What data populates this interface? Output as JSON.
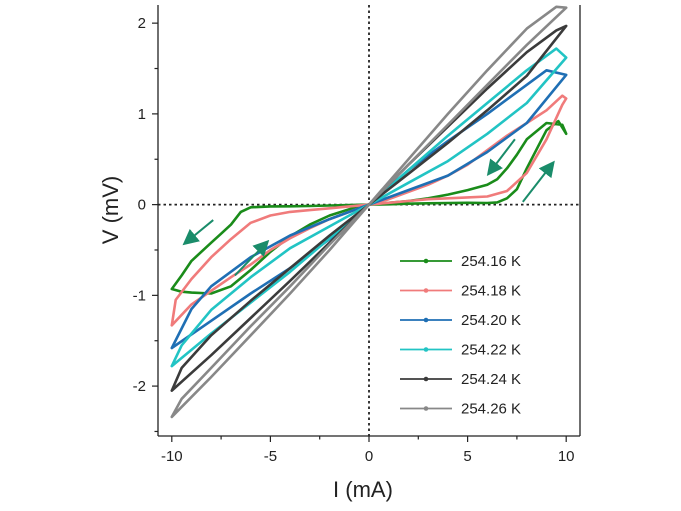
{
  "chart_data": {
    "type": "line",
    "xlabel": "I (mA)",
    "ylabel": "V (mV)",
    "xlim": [
      -10.7,
      10.7
    ],
    "ylim": [
      -2.55,
      2.2
    ],
    "x_ticks": [
      -10,
      -5,
      0,
      5,
      10
    ],
    "y_ticks": [
      -2,
      -1,
      0,
      1,
      2
    ],
    "reference_lines": {
      "x": 0,
      "y": 0,
      "style": "dotted"
    },
    "legend_position": "bottom-right",
    "series": [
      {
        "name": "254.16 K",
        "color": "#1a8c1a",
        "x": [
          -10,
          -9.5,
          -9,
          -8,
          -7,
          -6,
          -5,
          -4,
          -3,
          -2,
          -1,
          0,
          1,
          2,
          3,
          4,
          5,
          6,
          6.5,
          7,
          7.5,
          8,
          9,
          9.6,
          10,
          9.8,
          9,
          8,
          7.5,
          7,
          6.5,
          6,
          5,
          4,
          3,
          2,
          1,
          0,
          -1,
          -2,
          -3,
          -4,
          -5,
          -6,
          -6.5,
          -7,
          -7.5,
          -8,
          -9,
          -9.5,
          -10
        ],
        "y": [
          -0.93,
          -0.96,
          -0.97,
          -0.98,
          -0.9,
          -0.72,
          -0.52,
          -0.35,
          -0.22,
          -0.12,
          -0.05,
          0,
          0.004,
          0.01,
          0.015,
          0.018,
          0.02,
          0.018,
          0.025,
          0.07,
          0.17,
          0.4,
          0.82,
          0.92,
          0.78,
          0.88,
          0.9,
          0.72,
          0.55,
          0.4,
          0.28,
          0.22,
          0.16,
          0.11,
          0.07,
          0.04,
          0.02,
          0,
          -0.004,
          -0.01,
          -0.015,
          -0.018,
          -0.02,
          -0.03,
          -0.08,
          -0.22,
          -0.32,
          -0.42,
          -0.62,
          -0.78,
          -0.93
        ]
      },
      {
        "name": "254.18 K",
        "color": "#f07b7b",
        "x": [
          -10,
          -9,
          -8,
          -7,
          -6,
          -5,
          -4,
          -3,
          -2,
          -1,
          0,
          1,
          2,
          3,
          4,
          5,
          6,
          7,
          8,
          9,
          9.8,
          10,
          9.8,
          9,
          8,
          7,
          6,
          5,
          4,
          3,
          2,
          1,
          0,
          -1,
          -2,
          -3,
          -4,
          -5,
          -6,
          -7,
          -8,
          -9,
          -9.8,
          -10
        ],
        "y": [
          -1.33,
          -1.1,
          -0.95,
          -0.8,
          -0.66,
          -0.5,
          -0.37,
          -0.26,
          -0.16,
          -0.08,
          0,
          0.02,
          0.04,
          0.06,
          0.07,
          0.08,
          0.09,
          0.15,
          0.35,
          0.72,
          1.1,
          1.17,
          1.2,
          1.04,
          0.9,
          0.76,
          0.6,
          0.44,
          0.32,
          0.22,
          0.14,
          0.06,
          0,
          -0.02,
          -0.04,
          -0.06,
          -0.08,
          -0.12,
          -0.2,
          -0.38,
          -0.58,
          -0.82,
          -1.05,
          -1.33
        ]
      },
      {
        "name": "254.20 K",
        "color": "#1f6fb4",
        "x": [
          -10,
          -8,
          -6,
          -4,
          -2,
          0,
          2,
          4,
          6,
          8,
          10,
          9,
          8,
          6,
          4,
          2,
          0,
          -2,
          -4,
          -6,
          -8,
          -9,
          -10
        ],
        "y": [
          -1.58,
          -1.28,
          -0.98,
          -0.7,
          -0.38,
          0,
          0.16,
          0.32,
          0.58,
          0.9,
          1.43,
          1.48,
          1.32,
          1.0,
          0.7,
          0.38,
          0,
          -0.16,
          -0.34,
          -0.58,
          -0.9,
          -1.15,
          -1.58
        ]
      },
      {
        "name": "254.22 K",
        "color": "#22c4c4",
        "x": [
          -10,
          -8,
          -6,
          -4,
          -2,
          0,
          2,
          4,
          6,
          8,
          10,
          9.5,
          8,
          6,
          4,
          2,
          0,
          -2,
          -4,
          -6,
          -8,
          -9.5,
          -10
        ],
        "y": [
          -1.78,
          -1.42,
          -1.08,
          -0.74,
          -0.37,
          0,
          0.24,
          0.48,
          0.78,
          1.12,
          1.62,
          1.72,
          1.48,
          1.12,
          0.76,
          0.38,
          0,
          -0.24,
          -0.48,
          -0.8,
          -1.16,
          -1.55,
          -1.78
        ]
      },
      {
        "name": "254.24 K",
        "color": "#3b3b3b",
        "x": [
          -10,
          -8,
          -6,
          -4,
          -2,
          0,
          2,
          4,
          6,
          8,
          10,
          9.5,
          8,
          6,
          4,
          2,
          0,
          -2,
          -4,
          -6,
          -8,
          -9.5,
          -10
        ],
        "y": [
          -2.05,
          -1.66,
          -1.25,
          -0.84,
          -0.42,
          0,
          0.34,
          0.68,
          1.04,
          1.42,
          1.97,
          1.92,
          1.68,
          1.28,
          0.86,
          0.44,
          0,
          -0.34,
          -0.7,
          -1.06,
          -1.44,
          -1.8,
          -2.05
        ]
      },
      {
        "name": "254.26 K",
        "color": "#888888",
        "x": [
          -10,
          -8,
          -6,
          -4,
          -2,
          0,
          2,
          4,
          6,
          8,
          10,
          9.5,
          8,
          6,
          4,
          2,
          0,
          -2,
          -4,
          -6,
          -8,
          -9.5,
          -10
        ],
        "y": [
          -2.34,
          -1.9,
          -1.44,
          -0.98,
          -0.5,
          0,
          0.44,
          0.88,
          1.32,
          1.76,
          2.17,
          2.18,
          1.94,
          1.48,
          1.0,
          0.5,
          0,
          -0.44,
          -0.9,
          -1.34,
          -1.8,
          -2.14,
          -2.34
        ]
      }
    ],
    "annotations": [
      {
        "type": "arrow",
        "color": "#1a8c6a",
        "from": [
          -7.9,
          -0.17
        ],
        "to": [
          -9.3,
          -0.42
        ]
      },
      {
        "type": "arrow",
        "color": "#1a8c6a",
        "from": [
          -6.8,
          -0.78
        ],
        "to": [
          -5.2,
          -0.42
        ]
      },
      {
        "type": "arrow",
        "color": "#1a8c6a",
        "from": [
          7.8,
          0.03
        ],
        "to": [
          9.3,
          0.45
        ]
      },
      {
        "type": "arrow",
        "color": "#1a8c6a",
        "from": [
          7.4,
          0.72
        ],
        "to": [
          6.1,
          0.35
        ]
      }
    ]
  }
}
